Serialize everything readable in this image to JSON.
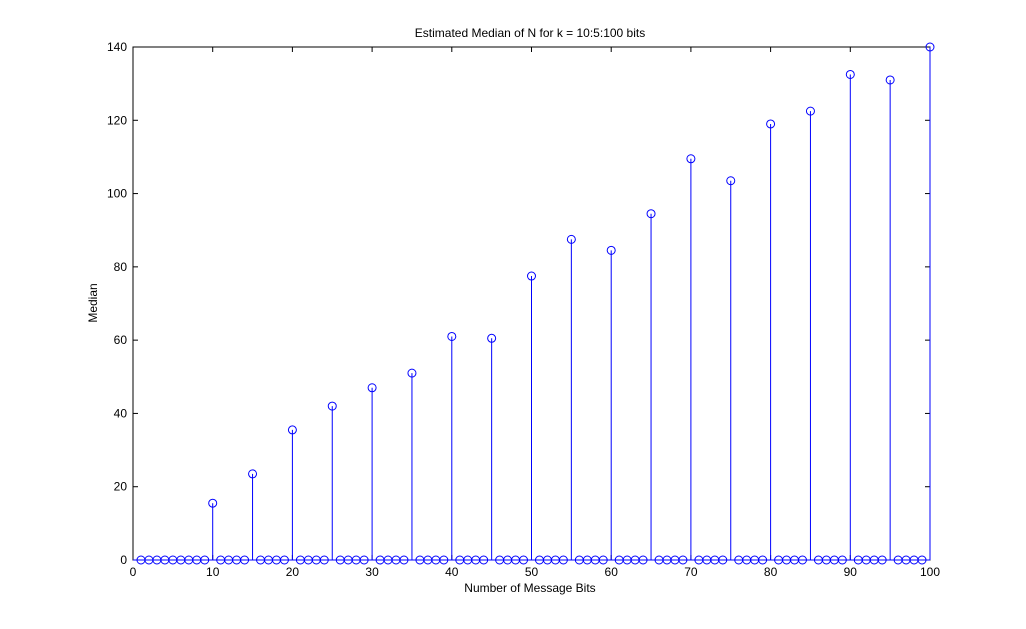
{
  "chart_data": {
    "type": "stem",
    "title": "Estimated Median of N for k = 10:5:100 bits",
    "xlabel": "Number of Message Bits",
    "ylabel": "Median",
    "xlim": [
      0,
      100
    ],
    "ylim": [
      0,
      140
    ],
    "xticks": [
      "0",
      "10",
      "20",
      "30",
      "40",
      "50",
      "60",
      "70",
      "80",
      "90",
      "100"
    ],
    "yticks": [
      "0",
      "20",
      "40",
      "60",
      "80",
      "100",
      "120",
      "140"
    ],
    "grid": false,
    "series": [
      {
        "color": "#0000ff",
        "marker": "open-circle",
        "nonzero_points": [
          {
            "x": 10,
            "y": 15.5
          },
          {
            "x": 15,
            "y": 23.5
          },
          {
            "x": 20,
            "y": 35.5
          },
          {
            "x": 25,
            "y": 42
          },
          {
            "x": 30,
            "y": 47
          },
          {
            "x": 35,
            "y": 51
          },
          {
            "x": 40,
            "y": 61
          },
          {
            "x": 45,
            "y": 60.5
          },
          {
            "x": 50,
            "y": 77.5
          },
          {
            "x": 55,
            "y": 87.5
          },
          {
            "x": 60,
            "y": 84.5
          },
          {
            "x": 65,
            "y": 94.5
          },
          {
            "x": 70,
            "y": 109.5
          },
          {
            "x": 75,
            "y": 103.5
          },
          {
            "x": 80,
            "y": 119
          },
          {
            "x": 85,
            "y": 122.5
          },
          {
            "x": 90,
            "y": 132.5
          },
          {
            "x": 95,
            "y": 131
          },
          {
            "x": 100,
            "y": 140
          }
        ],
        "zero_x_range": [
          1,
          100
        ],
        "zero_value": 0
      }
    ]
  }
}
